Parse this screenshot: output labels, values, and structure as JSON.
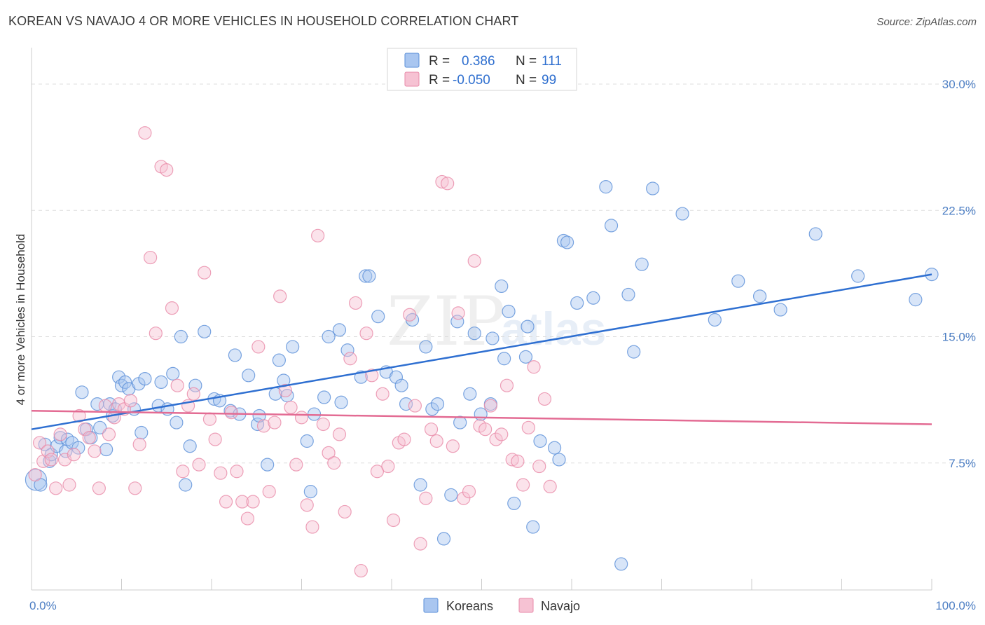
{
  "title": "KOREAN VS NAVAJO 4 OR MORE VEHICLES IN HOUSEHOLD CORRELATION CHART",
  "source": "Source: ZipAtlas.com",
  "watermark": {
    "zip": "ZIP",
    "atlas": "atlas"
  },
  "legend_top": [
    {
      "r_label": "R =",
      "r_value": "0.386",
      "n_label": "N =",
      "n_value": "111"
    },
    {
      "r_label": "R =",
      "r_value": "-0.050",
      "n_label": "N =",
      "n_value": "99"
    }
  ],
  "colors": {
    "korean_fill": "#a9c6f0",
    "korean_stroke": "#5a8fd8",
    "korean_line": "#2e6fd1",
    "navajo_fill": "#f6c2d3",
    "navajo_stroke": "#e88aa8",
    "navajo_line": "#e36b93",
    "grid": "#dddddd",
    "tick_label": "#4e7fc4"
  },
  "chart_data": {
    "type": "scatter",
    "title": "KOREAN VS NAVAJO 4 OR MORE VEHICLES IN HOUSEHOLD CORRELATION CHART",
    "xlabel": "",
    "ylabel": "4 or more Vehicles in Household",
    "xlim": [
      0,
      100
    ],
    "ylim": [
      0,
      31
    ],
    "x_tick_labels": [
      "0.0%",
      "100.0%"
    ],
    "y_ticks": [
      7.5,
      15.0,
      22.5,
      30.0
    ],
    "y_tick_labels": [
      "7.5%",
      "15.0%",
      "22.5%",
      "30.0%"
    ],
    "grid": "horizontal dashed",
    "legend_position": "bottom-center",
    "series": [
      {
        "name": "Koreans",
        "r": 0.386,
        "n": 111,
        "trend": {
          "x": [
            0,
            100
          ],
          "y": [
            9.5,
            18.7
          ]
        },
        "points": [
          [
            0.5,
            6.5
          ],
          [
            1.0,
            6.2
          ],
          [
            1.5,
            8.6
          ],
          [
            2.0,
            7.6
          ],
          [
            2.2,
            8.0
          ],
          [
            2.8,
            8.5
          ],
          [
            3.2,
            9.0
          ],
          [
            3.8,
            8.2
          ],
          [
            4.0,
            8.9
          ],
          [
            4.5,
            8.7
          ],
          [
            5.2,
            8.4
          ],
          [
            5.6,
            11.7
          ],
          [
            6.1,
            9.5
          ],
          [
            6.6,
            9.0
          ],
          [
            7.3,
            11.0
          ],
          [
            7.6,
            9.6
          ],
          [
            8.3,
            8.3
          ],
          [
            8.7,
            11.0
          ],
          [
            9.0,
            10.3
          ],
          [
            9.3,
            10.7
          ],
          [
            9.7,
            12.6
          ],
          [
            10.0,
            12.1
          ],
          [
            10.4,
            12.3
          ],
          [
            10.8,
            11.9
          ],
          [
            11.4,
            10.7
          ],
          [
            11.9,
            12.2
          ],
          [
            12.2,
            9.3
          ],
          [
            12.6,
            12.5
          ],
          [
            14.1,
            10.9
          ],
          [
            14.4,
            12.3
          ],
          [
            15.1,
            10.7
          ],
          [
            15.7,
            12.8
          ],
          [
            16.1,
            9.9
          ],
          [
            16.6,
            15.0
          ],
          [
            17.1,
            6.2
          ],
          [
            17.6,
            8.5
          ],
          [
            18.2,
            12.1
          ],
          [
            19.2,
            15.3
          ],
          [
            20.3,
            11.3
          ],
          [
            20.9,
            11.2
          ],
          [
            22.1,
            10.6
          ],
          [
            22.6,
            13.9
          ],
          [
            23.1,
            10.4
          ],
          [
            24.1,
            12.7
          ],
          [
            25.1,
            9.8
          ],
          [
            25.3,
            10.3
          ],
          [
            26.2,
            7.4
          ],
          [
            27.1,
            11.6
          ],
          [
            27.5,
            13.6
          ],
          [
            28.0,
            12.4
          ],
          [
            28.4,
            11.5
          ],
          [
            29.0,
            14.4
          ],
          [
            30.6,
            8.8
          ],
          [
            31.0,
            5.8
          ],
          [
            31.4,
            10.4
          ],
          [
            32.5,
            11.4
          ],
          [
            33.0,
            15.0
          ],
          [
            34.2,
            15.4
          ],
          [
            34.4,
            11.1
          ],
          [
            35.1,
            14.2
          ],
          [
            36.6,
            12.6
          ],
          [
            37.1,
            18.6
          ],
          [
            37.5,
            18.6
          ],
          [
            38.5,
            16.2
          ],
          [
            39.4,
            12.9
          ],
          [
            40.5,
            12.6
          ],
          [
            41.1,
            12.1
          ],
          [
            41.6,
            11.0
          ],
          [
            42.3,
            16.0
          ],
          [
            43.2,
            6.2
          ],
          [
            43.8,
            14.4
          ],
          [
            44.5,
            10.7
          ],
          [
            45.1,
            11.0
          ],
          [
            45.8,
            3.0
          ],
          [
            46.6,
            5.6
          ],
          [
            47.3,
            15.9
          ],
          [
            47.6,
            9.9
          ],
          [
            48.7,
            11.6
          ],
          [
            49.2,
            15.2
          ],
          [
            49.9,
            10.4
          ],
          [
            51.0,
            11.0
          ],
          [
            51.2,
            14.9
          ],
          [
            52.2,
            18.0
          ],
          [
            52.5,
            13.7
          ],
          [
            53.0,
            16.5
          ],
          [
            53.6,
            5.1
          ],
          [
            54.9,
            13.8
          ],
          [
            55.1,
            15.6
          ],
          [
            55.7,
            3.7
          ],
          [
            56.5,
            8.8
          ],
          [
            58.1,
            8.4
          ],
          [
            58.6,
            7.7
          ],
          [
            59.1,
            20.7
          ],
          [
            59.5,
            20.6
          ],
          [
            60.6,
            17.0
          ],
          [
            62.4,
            17.3
          ],
          [
            63.8,
            23.9
          ],
          [
            64.4,
            21.6
          ],
          [
            65.5,
            1.5
          ],
          [
            66.3,
            17.5
          ],
          [
            66.9,
            14.1
          ],
          [
            67.8,
            19.3
          ],
          [
            69.0,
            23.8
          ],
          [
            72.3,
            22.3
          ],
          [
            75.9,
            16.0
          ],
          [
            78.5,
            18.3
          ],
          [
            80.9,
            17.4
          ],
          [
            83.2,
            16.6
          ],
          [
            87.1,
            21.1
          ],
          [
            91.8,
            18.6
          ],
          [
            98.2,
            17.2
          ],
          [
            100.0,
            18.7
          ]
        ]
      },
      {
        "name": "Navajo",
        "r": -0.05,
        "n": 99,
        "trend": {
          "x": [
            0,
            100
          ],
          "y": [
            10.6,
            9.8
          ]
        },
        "points": [
          [
            0.4,
            6.8
          ],
          [
            0.9,
            8.7
          ],
          [
            1.3,
            7.6
          ],
          [
            1.8,
            8.2
          ],
          [
            2.2,
            7.7
          ],
          [
            2.7,
            6.0
          ],
          [
            3.2,
            9.2
          ],
          [
            3.7,
            7.7
          ],
          [
            4.2,
            6.2
          ],
          [
            4.7,
            8.0
          ],
          [
            5.3,
            10.3
          ],
          [
            5.9,
            9.5
          ],
          [
            6.4,
            9.0
          ],
          [
            7.0,
            8.2
          ],
          [
            7.5,
            6.0
          ],
          [
            8.2,
            10.9
          ],
          [
            8.6,
            9.2
          ],
          [
            9.2,
            10.2
          ],
          [
            9.7,
            11.0
          ],
          [
            10.3,
            10.7
          ],
          [
            11.0,
            11.2
          ],
          [
            11.5,
            6.0
          ],
          [
            12.0,
            8.6
          ],
          [
            12.6,
            27.1
          ],
          [
            13.2,
            19.7
          ],
          [
            13.8,
            15.2
          ],
          [
            14.4,
            25.1
          ],
          [
            15.0,
            24.9
          ],
          [
            15.6,
            16.7
          ],
          [
            16.2,
            12.1
          ],
          [
            16.8,
            7.0
          ],
          [
            17.4,
            10.9
          ],
          [
            18.0,
            11.6
          ],
          [
            18.6,
            7.4
          ],
          [
            19.2,
            18.8
          ],
          [
            19.8,
            10.1
          ],
          [
            20.4,
            8.9
          ],
          [
            21.0,
            6.9
          ],
          [
            21.6,
            5.2
          ],
          [
            22.2,
            10.5
          ],
          [
            22.8,
            7.0
          ],
          [
            23.4,
            5.2
          ],
          [
            24.0,
            4.2
          ],
          [
            24.6,
            5.2
          ],
          [
            25.2,
            14.4
          ],
          [
            25.8,
            9.7
          ],
          [
            26.4,
            5.8
          ],
          [
            27.0,
            9.9
          ],
          [
            27.6,
            17.4
          ],
          [
            28.2,
            11.8
          ],
          [
            28.8,
            10.8
          ],
          [
            29.4,
            7.4
          ],
          [
            30.0,
            10.2
          ],
          [
            30.6,
            5.0
          ],
          [
            31.2,
            3.7
          ],
          [
            31.8,
            21.0
          ],
          [
            32.4,
            9.8
          ],
          [
            33.0,
            8.1
          ],
          [
            33.6,
            7.5
          ],
          [
            34.2,
            9.2
          ],
          [
            34.8,
            4.6
          ],
          [
            35.4,
            13.7
          ],
          [
            36.0,
            17.0
          ],
          [
            36.6,
            1.1
          ],
          [
            37.2,
            15.2
          ],
          [
            37.8,
            12.7
          ],
          [
            38.4,
            7.0
          ],
          [
            39.0,
            11.6
          ],
          [
            39.6,
            7.3
          ],
          [
            40.2,
            4.1
          ],
          [
            40.8,
            8.7
          ],
          [
            41.4,
            8.9
          ],
          [
            42.0,
            16.3
          ],
          [
            42.6,
            10.9
          ],
          [
            43.2,
            2.7
          ],
          [
            43.8,
            5.4
          ],
          [
            44.4,
            9.5
          ],
          [
            45.0,
            8.8
          ],
          [
            45.6,
            24.2
          ],
          [
            46.2,
            24.1
          ],
          [
            46.8,
            8.5
          ],
          [
            47.4,
            16.4
          ],
          [
            48.0,
            5.4
          ],
          [
            48.6,
            5.8
          ],
          [
            49.2,
            19.5
          ],
          [
            49.8,
            9.7
          ],
          [
            50.4,
            9.5
          ],
          [
            51.0,
            10.9
          ],
          [
            51.6,
            8.9
          ],
          [
            52.2,
            9.2
          ],
          [
            52.8,
            12.1
          ],
          [
            53.4,
            7.7
          ],
          [
            54.0,
            7.6
          ],
          [
            54.6,
            6.2
          ],
          [
            55.2,
            9.6
          ],
          [
            55.8,
            13.2
          ],
          [
            56.4,
            7.3
          ],
          [
            57.0,
            11.3
          ],
          [
            57.6,
            6.1
          ]
        ]
      }
    ]
  },
  "legend_bottom": [
    "Koreans",
    "Navajo"
  ]
}
